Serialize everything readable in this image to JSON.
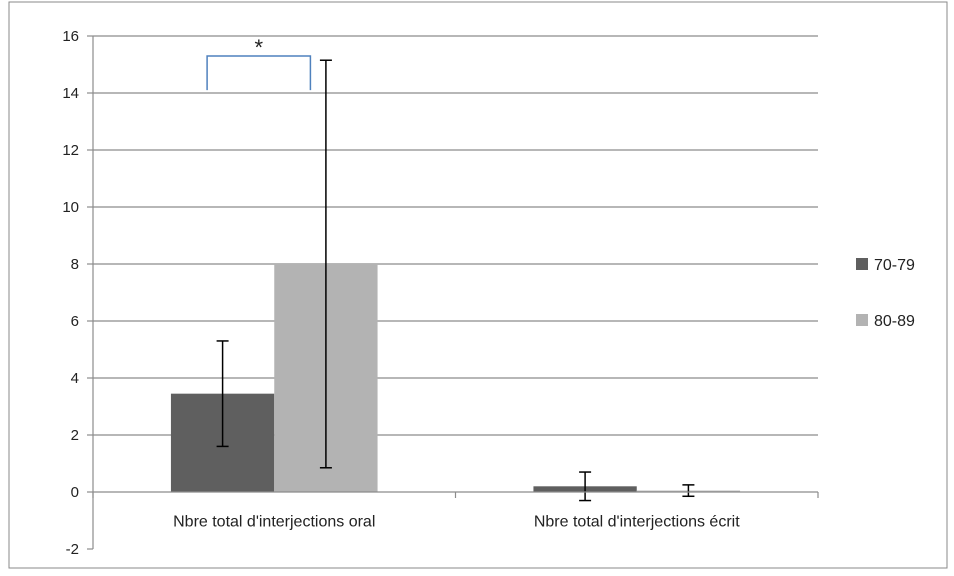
{
  "chart_data": {
    "type": "bar",
    "categories": [
      "Nbre total d'interjections oral",
      "Nbre total d'interjections écrit"
    ],
    "series": [
      {
        "name": "70-79",
        "values": [
          3.45,
          0.2
        ],
        "error": [
          1.85,
          0.5
        ],
        "color": "#5f5f5f"
      },
      {
        "name": "80-89",
        "values": [
          8.0,
          0.05
        ],
        "error": [
          7.15,
          0.2
        ],
        "color": "#b3b3b3"
      }
    ],
    "ylim": [
      -2,
      16
    ],
    "yticks": [
      "-2",
      "0",
      "2",
      "4",
      "6",
      "8",
      "10",
      "12",
      "14",
      "16"
    ],
    "grid": true,
    "legend": "right",
    "annotation": "*",
    "title": "",
    "xlabel": "",
    "ylabel": ""
  }
}
